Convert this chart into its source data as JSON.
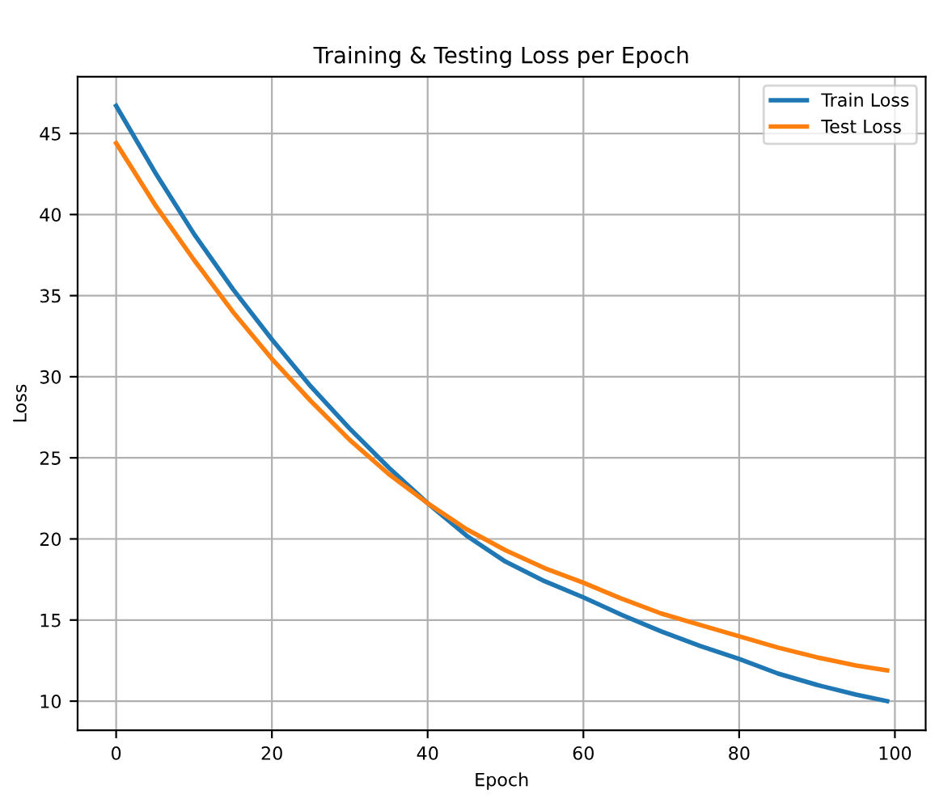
{
  "chart_data": {
    "type": "line",
    "title": "Training & Testing Loss per Epoch",
    "xlabel": "Epoch",
    "ylabel": "Loss",
    "x": [
      0,
      5,
      10,
      15,
      20,
      25,
      30,
      35,
      40,
      45,
      50,
      55,
      60,
      65,
      70,
      75,
      80,
      85,
      90,
      95,
      99
    ],
    "series": [
      {
        "name": "Train Loss",
        "color": "#1f77b4",
        "values": [
          46.7,
          42.6,
          38.8,
          35.4,
          32.3,
          29.4,
          26.8,
          24.4,
          22.2,
          20.2,
          18.6,
          17.4,
          16.4,
          15.3,
          14.3,
          13.4,
          12.6,
          11.7,
          11.0,
          10.4,
          10.0
        ]
      },
      {
        "name": "Test Loss",
        "color": "#ff7f0e",
        "values": [
          44.4,
          40.6,
          37.2,
          34.0,
          31.1,
          28.5,
          26.1,
          24.0,
          22.2,
          20.6,
          19.3,
          18.2,
          17.3,
          16.3,
          15.4,
          14.7,
          14.0,
          13.3,
          12.7,
          12.2,
          11.9
        ]
      }
    ],
    "xlim": [
      -4.95,
      103.95
    ],
    "ylim": [
      8.2,
      48.5
    ],
    "xticks": [
      0,
      20,
      40,
      60,
      80,
      100
    ],
    "yticks": [
      10,
      15,
      20,
      25,
      30,
      35,
      40,
      45
    ],
    "grid": true,
    "legend": "top right",
    "marker": "none",
    "line_style": "solid"
  }
}
